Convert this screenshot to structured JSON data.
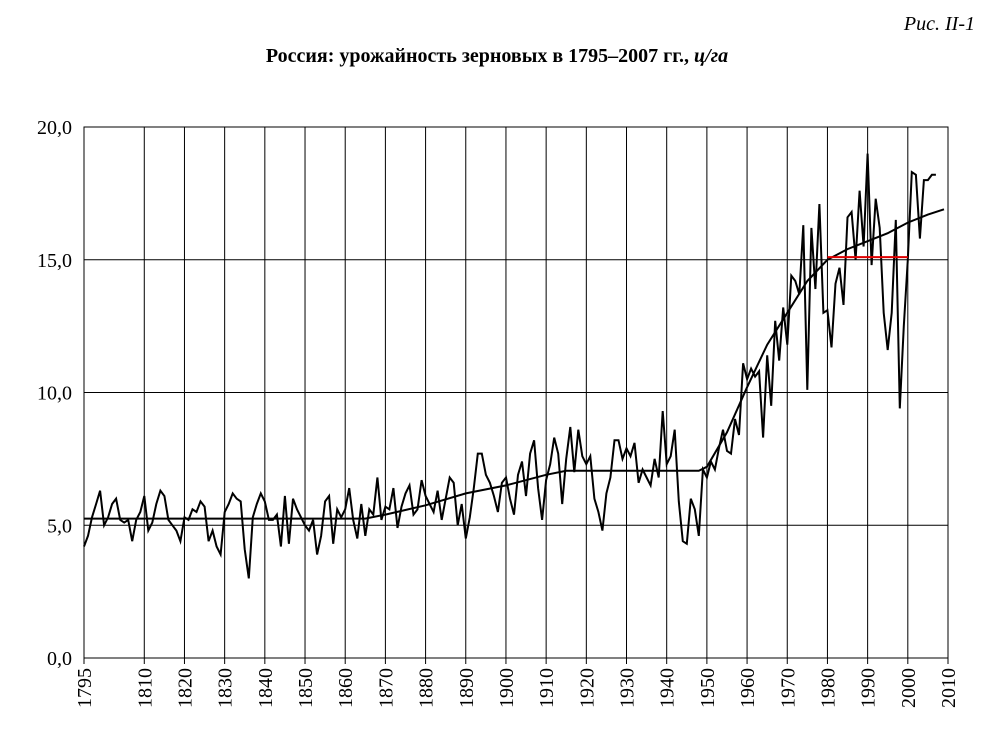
{
  "chart_data": {
    "type": "line",
    "figure_label": "Рис. II-1",
    "title": "Россия: урожайность зерновых в 1795–2007 гг., ",
    "unit": "ц/га",
    "x": [
      1795,
      1796,
      1797,
      1798,
      1799,
      1800,
      1801,
      1802,
      1803,
      1804,
      1805,
      1806,
      1807,
      1808,
      1809,
      1810,
      1811,
      1812,
      1813,
      1814,
      1815,
      1816,
      1817,
      1818,
      1819,
      1820,
      1821,
      1822,
      1823,
      1824,
      1825,
      1826,
      1827,
      1828,
      1829,
      1830,
      1831,
      1832,
      1833,
      1834,
      1835,
      1836,
      1837,
      1838,
      1839,
      1840,
      1841,
      1842,
      1843,
      1844,
      1845,
      1846,
      1847,
      1848,
      1849,
      1850,
      1851,
      1852,
      1853,
      1854,
      1855,
      1856,
      1857,
      1858,
      1859,
      1860,
      1861,
      1862,
      1863,
      1864,
      1865,
      1866,
      1867,
      1868,
      1869,
      1870,
      1871,
      1872,
      1873,
      1874,
      1875,
      1876,
      1877,
      1878,
      1879,
      1880,
      1881,
      1882,
      1883,
      1884,
      1885,
      1886,
      1887,
      1888,
      1889,
      1890,
      1891,
      1892,
      1893,
      1894,
      1895,
      1896,
      1897,
      1898,
      1899,
      1900,
      1901,
      1902,
      1903,
      1904,
      1905,
      1906,
      1907,
      1908,
      1909,
      1910,
      1911,
      1912,
      1913,
      1914,
      1915,
      1916,
      1917,
      1918,
      1919,
      1920,
      1921,
      1922,
      1923,
      1924,
      1925,
      1926,
      1927,
      1928,
      1929,
      1930,
      1931,
      1932,
      1933,
      1934,
      1935,
      1936,
      1937,
      1938,
      1939,
      1940,
      1941,
      1942,
      1943,
      1944,
      1945,
      1946,
      1947,
      1948,
      1949,
      1950,
      1951,
      1952,
      1953,
      1954,
      1955,
      1956,
      1957,
      1958,
      1959,
      1960,
      1961,
      1962,
      1963,
      1964,
      1965,
      1966,
      1967,
      1968,
      1969,
      1970,
      1971,
      1972,
      1973,
      1974,
      1975,
      1976,
      1977,
      1978,
      1979,
      1980,
      1981,
      1982,
      1983,
      1984,
      1985,
      1986,
      1987,
      1988,
      1989,
      1990,
      1991,
      1992,
      1993,
      1994,
      1995,
      1996,
      1997,
      1998,
      1999,
      2000,
      2001,
      2002,
      2003,
      2004,
      2005,
      2006,
      2007
    ],
    "series": [
      {
        "color": "#000000",
        "values": [
          4.2,
          4.6,
          5.3,
          5.8,
          6.3,
          5.0,
          5.3,
          5.8,
          6.0,
          5.2,
          5.1,
          5.2,
          4.4,
          5.2,
          5.5,
          6.1,
          4.8,
          5.1,
          5.8,
          6.3,
          6.1,
          5.2,
          5.0,
          4.8,
          4.4,
          5.3,
          5.2,
          5.6,
          5.5,
          5.9,
          5.7,
          4.4,
          4.8,
          4.2,
          3.9,
          5.5,
          5.8,
          6.2,
          6.0,
          5.9,
          4.1,
          3.0,
          5.3,
          5.8,
          6.2,
          5.9,
          5.2,
          5.2,
          5.4,
          4.2,
          6.1,
          4.3,
          6.0,
          5.6,
          5.3,
          5.0,
          4.8,
          5.2,
          3.9,
          4.6,
          5.9,
          6.1,
          4.3,
          5.6,
          5.3,
          5.6,
          6.4,
          5.2,
          4.5,
          5.8,
          4.6,
          5.6,
          5.4,
          6.8,
          5.2,
          5.7,
          5.6,
          6.4,
          4.9,
          5.7,
          6.2,
          6.5,
          5.4,
          5.6,
          6.7,
          6.1,
          5.8,
          5.5,
          6.3,
          5.2,
          6.0,
          6.8,
          6.6,
          5.0,
          5.8,
          4.5,
          5.3,
          6.4,
          7.7,
          7.7,
          6.9,
          6.6,
          6.1,
          5.5,
          6.6,
          6.8,
          6.0,
          5.4,
          6.9,
          7.4,
          6.1,
          7.7,
          8.2,
          6.4,
          5.2,
          6.7,
          7.3,
          8.3,
          7.7,
          5.8,
          7.5,
          8.7,
          7.0,
          8.6,
          7.6,
          7.3,
          7.6,
          6.0,
          5.5,
          4.8,
          6.2,
          6.8,
          8.2,
          8.2,
          7.5,
          7.9,
          7.6,
          8.1,
          6.6,
          7.1,
          6.8,
          6.5,
          7.5,
          6.8,
          9.3,
          7.3,
          7.6,
          8.6,
          5.9,
          4.4,
          4.3,
          6.0,
          5.6,
          4.6,
          7.1,
          6.8,
          7.4,
          7.1,
          7.9,
          8.6,
          7.8,
          7.7,
          9.0,
          8.4,
          11.1,
          10.5,
          10.9,
          10.6,
          10.8,
          8.3,
          11.4,
          9.5,
          12.7,
          11.2,
          13.2,
          11.8,
          14.4,
          14.2,
          13.7,
          16.3,
          10.1,
          16.2,
          13.9,
          17.1,
          13.0,
          13.1,
          11.7,
          14.1,
          14.7,
          13.3,
          16.6,
          16.8,
          15.0,
          17.6,
          15.5,
          19.0,
          14.8,
          17.3,
          16.2,
          13.0,
          11.6,
          13.0,
          16.5,
          9.4,
          12.5,
          15.0,
          18.3,
          18.2,
          15.8,
          18.0,
          18.0,
          18.2,
          18.2
        ]
      },
      {
        "color": "#000000",
        "x": [
          1795,
          1865,
          1870,
          1880,
          1890,
          1900,
          1910,
          1915,
          1948,
          1950,
          1955,
          1960,
          1965,
          1970,
          1975,
          1980,
          1985,
          1990,
          1995,
          2000,
          2005,
          2009
        ],
        "values": [
          5.25,
          5.25,
          5.4,
          5.75,
          6.2,
          6.5,
          6.9,
          7.05,
          7.05,
          7.2,
          8.5,
          10.2,
          11.8,
          13.0,
          14.2,
          15.0,
          15.4,
          15.7,
          16.0,
          16.4,
          16.7,
          16.9
        ]
      },
      {
        "color": "#e00000",
        "x": [
          1980,
          2000
        ],
        "values": [
          15.1,
          15.1
        ]
      }
    ],
    "xlim": [
      1795,
      2010
    ],
    "xticks": [
      1795,
      1810,
      1820,
      1830,
      1840,
      1850,
      1860,
      1870,
      1880,
      1890,
      1900,
      1910,
      1920,
      1930,
      1940,
      1950,
      1960,
      1970,
      1980,
      1990,
      2000,
      2010
    ],
    "ylim": [
      0,
      20
    ],
    "yticks": [
      {
        "value": 0,
        "label": "0,0"
      },
      {
        "value": 5,
        "label": "5,0"
      },
      {
        "value": 10,
        "label": "10,0"
      },
      {
        "value": 15,
        "label": "15,0"
      },
      {
        "value": 20,
        "label": "20,0"
      }
    ],
    "grid": true
  }
}
